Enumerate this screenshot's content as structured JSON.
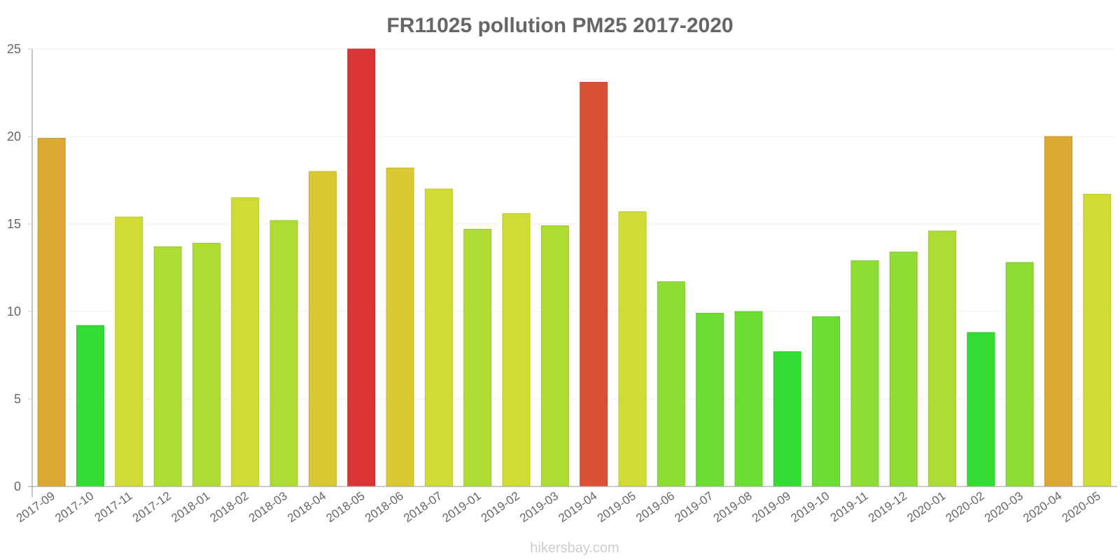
{
  "title": "FR11025 pollution PM25 2017-2020",
  "watermark": "hikersbay.com",
  "chart_data": {
    "type": "bar",
    "title": "FR11025 pollution PM25 2017-2020",
    "xlabel": "",
    "ylabel": "",
    "ylim": [
      0,
      25
    ],
    "yticks": [
      0,
      5,
      10,
      15,
      20,
      25
    ],
    "grid": true,
    "legend": null,
    "categories": [
      "2017-09",
      "2017-10",
      "2017-11",
      "2017-12",
      "2018-01",
      "2018-02",
      "2018-03",
      "2018-04",
      "2018-05",
      "2018-06",
      "2018-07",
      "2019-01",
      "2019-02",
      "2019-03",
      "2019-04",
      "2019-05",
      "2019-06",
      "2019-07",
      "2019-08",
      "2019-09",
      "2019-10",
      "2019-11",
      "2019-12",
      "2020-01",
      "2020-02",
      "2020-03",
      "2020-04",
      "2020-05"
    ],
    "values": [
      19.9,
      9.2,
      15.4,
      13.7,
      13.9,
      16.5,
      15.2,
      18.0,
      25.0,
      18.2,
      17.0,
      14.7,
      15.6,
      14.9,
      23.1,
      15.7,
      11.7,
      9.9,
      10.0,
      7.7,
      9.7,
      12.9,
      13.4,
      14.6,
      8.8,
      12.8,
      20.0,
      16.7
    ],
    "colors": [
      "#dba834",
      "#33dd33",
      "#cfdc34",
      "#addd33",
      "#addd33",
      "#cfdc34",
      "#addd33",
      "#dbc934",
      "#db3434",
      "#dbc934",
      "#cfdc34",
      "#addd33",
      "#cfdc34",
      "#addd33",
      "#db5034",
      "#cfdc34",
      "#8ddd33",
      "#6ddd33",
      "#6ddd33",
      "#33dd33",
      "#6ddd33",
      "#8ddd33",
      "#8ddd33",
      "#addd33",
      "#33dd33",
      "#8ddd33",
      "#dba834",
      "#cfdc34"
    ]
  }
}
